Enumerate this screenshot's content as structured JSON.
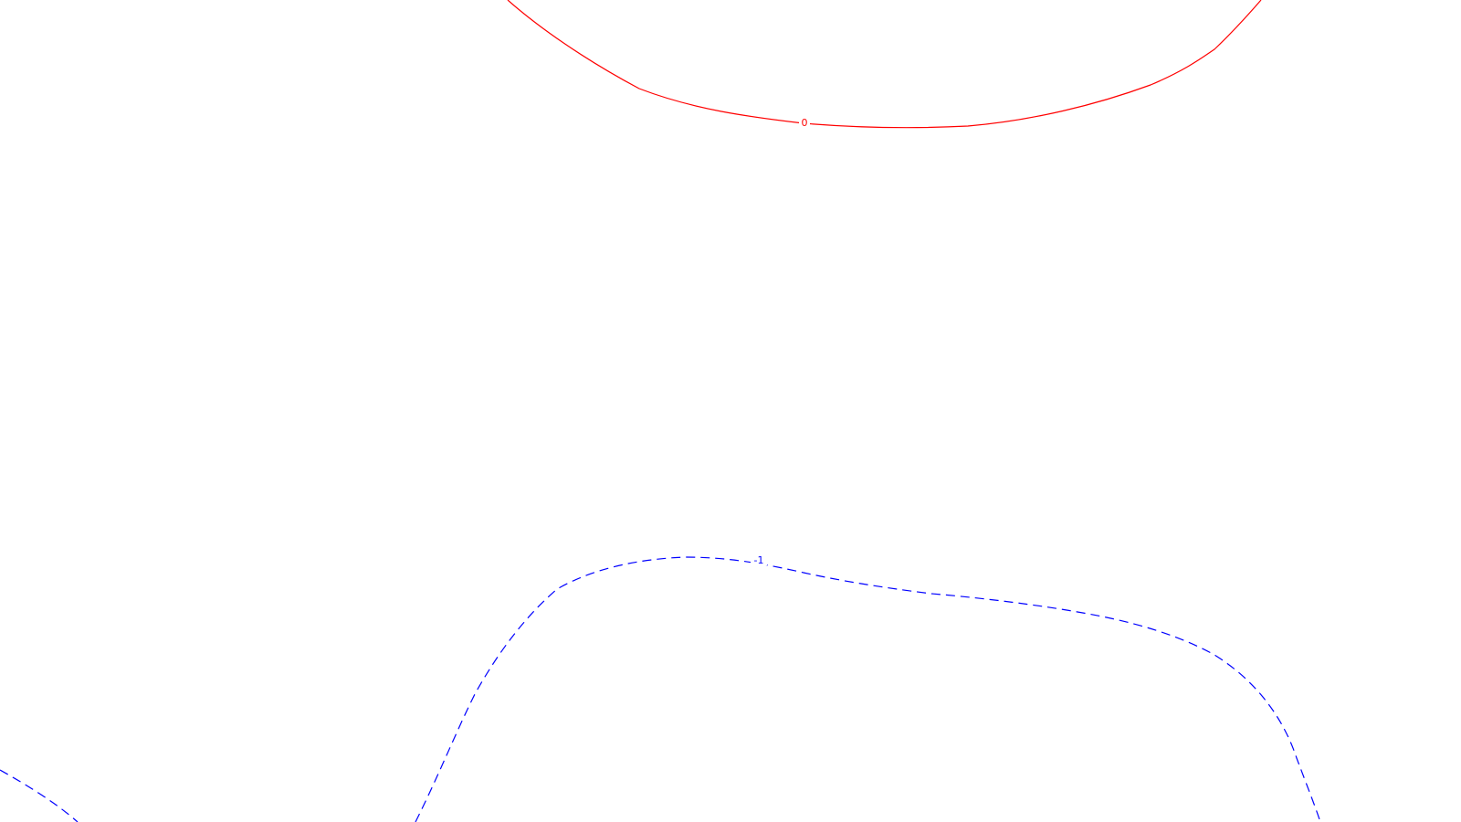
{
  "contours": [
    {
      "id": "contour-zero",
      "label": "0",
      "color": "#ff0000",
      "line_style": "solid"
    },
    {
      "id": "contour-minus-one",
      "label": "-1",
      "color": "#0000ff",
      "line_style": "dashed"
    }
  ]
}
